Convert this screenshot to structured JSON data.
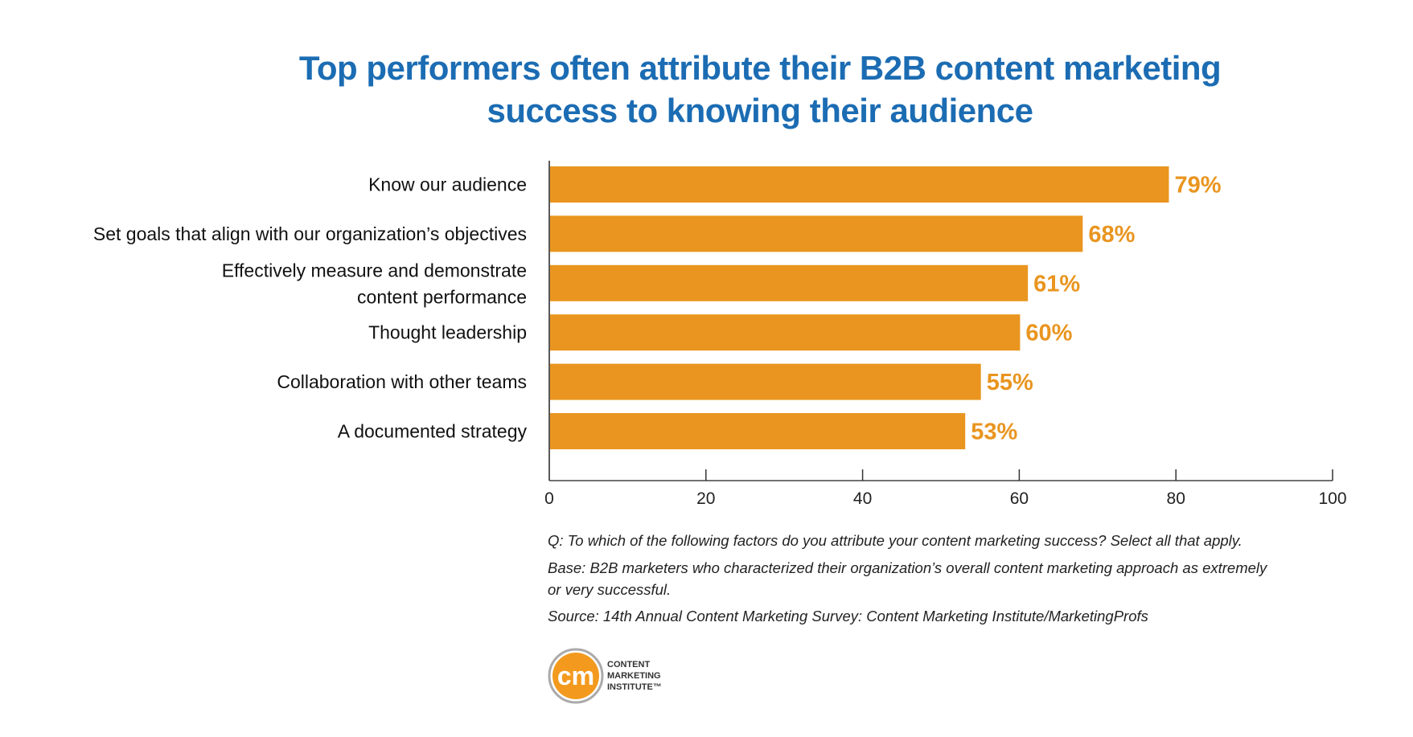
{
  "title_lines": [
    "Top performers often attribute their B2B content marketing",
    "success to knowing their audience"
  ],
  "chart_data": {
    "type": "bar",
    "orientation": "horizontal",
    "categories": [
      [
        "Know our audience"
      ],
      [
        "Set goals that align with our organization’s objectives"
      ],
      [
        "Effectively measure and demonstrate",
        "content performance"
      ],
      [
        "Thought leadership"
      ],
      [
        "Collaboration with other teams"
      ],
      [
        "A documented strategy"
      ]
    ],
    "values": [
      79,
      68,
      61,
      60,
      55,
      53
    ],
    "data_labels": [
      "79%",
      "68%",
      "61%",
      "60%",
      "55%",
      "53%"
    ],
    "xlim": [
      0,
      100
    ],
    "xticks": [
      0,
      20,
      40,
      60,
      80,
      100
    ],
    "grid": false,
    "bar_color": "#e9951f",
    "label_color": "#e9951f"
  },
  "notes": {
    "question": "Q: To which of the following factors do you attribute your content marketing success? Select all that apply.",
    "base_line1": "Base: B2B marketers who characterized their organization’s overall content marketing approach as extremely",
    "base_line2": "or very successful.",
    "source": "Source: 14th Annual Content Marketing Survey: Content Marketing Institute/MarketingProfs"
  },
  "logo": {
    "mark": "cm",
    "lines": [
      "CONTENT",
      "MARKETING",
      "INSTITUTE™"
    ],
    "color": "#f39a1e"
  }
}
